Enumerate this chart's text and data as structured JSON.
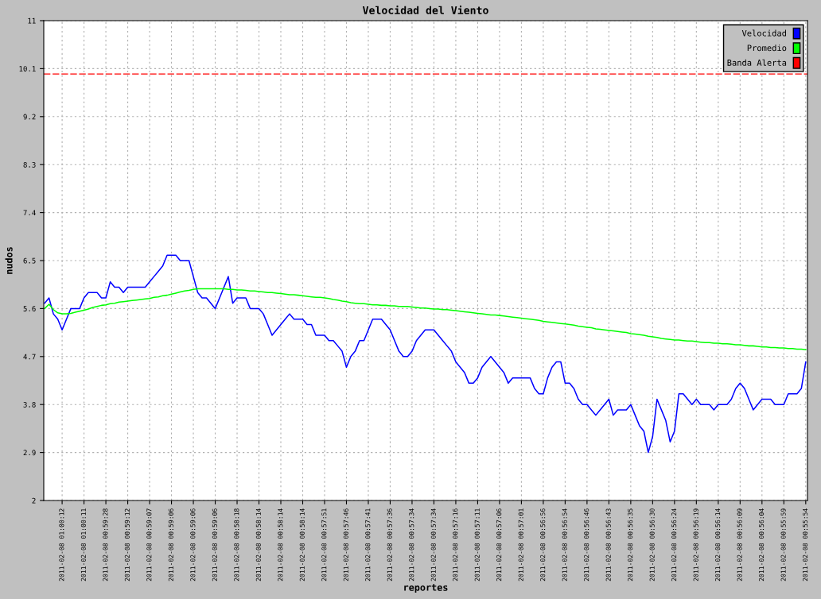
{
  "chart_data": {
    "type": "line",
    "title": "Velocidad del Viento",
    "xlabel": "reportes",
    "ylabel": "nudos",
    "ylim": [
      2,
      11
    ],
    "yticks": [
      2,
      2.9,
      3.8,
      4.7,
      5.6,
      6.5,
      7.4,
      8.3,
      9.2,
      10.1,
      11
    ],
    "categories": [
      null,
      null,
      null,
      null,
      "2011-02-08 01:00:12",
      null,
      null,
      null,
      null,
      "2011-02-08 01:00:11",
      null,
      null,
      null,
      null,
      "2011-02-08 00:59:28",
      null,
      null,
      null,
      null,
      "2011-02-08 00:59:12",
      null,
      null,
      null,
      null,
      "2011-02-08 00:59:07",
      null,
      null,
      null,
      null,
      "2011-02-08 00:59:06",
      null,
      null,
      null,
      null,
      "2011-02-08 00:59:06",
      null,
      null,
      null,
      null,
      "2011-02-08 00:59:06",
      null,
      null,
      null,
      null,
      "2011-02-08 00:58:18",
      null,
      null,
      null,
      null,
      "2011-02-08 00:58:14",
      null,
      null,
      null,
      null,
      "2011-02-08 00:58:14",
      null,
      null,
      null,
      null,
      "2011-02-08 00:58:14",
      null,
      null,
      null,
      null,
      "2011-02-08 00:57:51",
      null,
      null,
      null,
      null,
      "2011-02-08 00:57:46",
      null,
      null,
      null,
      null,
      "2011-02-08 00:57:41",
      null,
      null,
      null,
      null,
      "2011-02-08 00:57:36",
      null,
      null,
      null,
      null,
      "2011-02-08 00:57:34",
      null,
      null,
      null,
      null,
      "2011-02-08 00:57:34",
      null,
      null,
      null,
      null,
      "2011-02-08 00:57:16",
      null,
      null,
      null,
      null,
      "2011-02-08 00:57:11",
      null,
      null,
      null,
      null,
      "2011-02-08 00:57:06",
      null,
      null,
      null,
      null,
      "2011-02-08 00:57:01",
      null,
      null,
      null,
      null,
      "2011-02-08 00:56:56",
      null,
      null,
      null,
      null,
      "2011-02-08 00:56:54",
      null,
      null,
      null,
      null,
      "2011-02-08 00:56:46",
      null,
      null,
      null,
      null,
      "2011-02-08 00:56:43",
      null,
      null,
      null,
      null,
      "2011-02-08 00:56:35",
      null,
      null,
      null,
      null,
      "2011-02-08 00:56:30",
      null,
      null,
      null,
      null,
      "2011-02-08 00:56:24",
      null,
      null,
      null,
      null,
      "2011-02-08 00:56:19",
      null,
      null,
      null,
      null,
      "2011-02-08 00:56:14",
      null,
      null,
      null,
      null,
      "2011-02-08 00:56:09",
      null,
      null,
      null,
      null,
      "2011-02-08 00:56:04",
      null,
      null,
      null,
      null,
      "2011-02-08 00:55:59",
      null,
      null,
      null,
      null,
      "2011-02-08 00:55:54"
    ],
    "grid": true,
    "legend": "top right",
    "series": [
      {
        "name": "Velocidad",
        "color": "#0000ff",
        "values": [
          5.7,
          5.8,
          5.5,
          5.4,
          5.2,
          5.4,
          5.6,
          5.6,
          5.6,
          5.8,
          5.9,
          5.9,
          5.9,
          5.8,
          5.8,
          6.1,
          6.0,
          6.0,
          5.9,
          6.0,
          6.0,
          6.0,
          6.0,
          6.0,
          6.1,
          6.2,
          6.3,
          6.4,
          6.6,
          6.6,
          6.6,
          6.5,
          6.5,
          6.5,
          6.2,
          5.9,
          5.8,
          5.8,
          5.7,
          5.6,
          5.8,
          6.0,
          6.2,
          5.7,
          5.8,
          5.8,
          5.8,
          5.6,
          5.6,
          5.6,
          5.5,
          5.3,
          5.1,
          5.2,
          5.3,
          5.4,
          5.5,
          5.4,
          5.4,
          5.4,
          5.3,
          5.3,
          5.1,
          5.1,
          5.1,
          5.0,
          5.0,
          4.9,
          4.8,
          4.5,
          4.7,
          4.8,
          5.0,
          5.0,
          5.2,
          5.4,
          5.4,
          5.4,
          5.3,
          5.2,
          5.0,
          4.8,
          4.7,
          4.7,
          4.8,
          5.0,
          5.1,
          5.2,
          5.2,
          5.2,
          5.1,
          5.0,
          4.9,
          4.8,
          4.6,
          4.5,
          4.4,
          4.2,
          4.2,
          4.3,
          4.5,
          4.6,
          4.7,
          4.6,
          4.5,
          4.4,
          4.2,
          4.3,
          4.3,
          4.3,
          4.3,
          4.3,
          4.1,
          4.0,
          4.0,
          4.3,
          4.5,
          4.6,
          4.6,
          4.2,
          4.2,
          4.1,
          3.9,
          3.8,
          3.8,
          3.7,
          3.6,
          3.7,
          3.8,
          3.9,
          3.6,
          3.7,
          3.7,
          3.7,
          3.8,
          3.6,
          3.4,
          3.3,
          2.9,
          3.2,
          3.9,
          3.7,
          3.5,
          3.1,
          3.3,
          4.0,
          4.0,
          3.9,
          3.8,
          3.9,
          3.8,
          3.8,
          3.8,
          3.7,
          3.8,
          3.8,
          3.8,
          3.9,
          4.1,
          4.2,
          4.1,
          3.9,
          3.7,
          3.8,
          3.9,
          3.9,
          3.9,
          3.8,
          3.8,
          3.8,
          4.0,
          4.0,
          4.0,
          4.1,
          4.6
        ]
      },
      {
        "name": "Promedio",
        "color": "#00ff00",
        "values": [
          5.6,
          5.68,
          5.58,
          5.52,
          5.5,
          5.5,
          5.51,
          5.53,
          5.55,
          5.57,
          5.59,
          5.62,
          5.64,
          5.66,
          5.67,
          5.69,
          5.7,
          5.72,
          5.73,
          5.74,
          5.75,
          5.76,
          5.77,
          5.78,
          5.79,
          5.81,
          5.82,
          5.84,
          5.85,
          5.87,
          5.89,
          5.91,
          5.93,
          5.94,
          5.96,
          5.97,
          5.97,
          5.97,
          5.97,
          5.97,
          5.97,
          5.97,
          5.96,
          5.96,
          5.95,
          5.95,
          5.94,
          5.93,
          5.93,
          5.92,
          5.91,
          5.9,
          5.9,
          5.89,
          5.88,
          5.87,
          5.86,
          5.86,
          5.85,
          5.84,
          5.83,
          5.82,
          5.81,
          5.81,
          5.8,
          5.79,
          5.77,
          5.76,
          5.74,
          5.73,
          5.71,
          5.7,
          5.69,
          5.69,
          5.68,
          5.67,
          5.67,
          5.66,
          5.66,
          5.65,
          5.65,
          5.64,
          5.64,
          5.64,
          5.63,
          5.62,
          5.61,
          5.61,
          5.6,
          5.59,
          5.59,
          5.58,
          5.58,
          5.57,
          5.56,
          5.55,
          5.54,
          5.53,
          5.52,
          5.51,
          5.5,
          5.49,
          5.48,
          5.48,
          5.47,
          5.46,
          5.45,
          5.44,
          5.43,
          5.42,
          5.41,
          5.4,
          5.39,
          5.38,
          5.36,
          5.35,
          5.34,
          5.33,
          5.32,
          5.31,
          5.3,
          5.29,
          5.27,
          5.26,
          5.25,
          5.24,
          5.22,
          5.21,
          5.2,
          5.19,
          5.18,
          5.17,
          5.16,
          5.15,
          5.13,
          5.12,
          5.11,
          5.1,
          5.08,
          5.07,
          5.06,
          5.04,
          5.03,
          5.02,
          5.01,
          5.01,
          5.0,
          4.99,
          4.99,
          4.98,
          4.97,
          4.96,
          4.96,
          4.95,
          4.95,
          4.94,
          4.94,
          4.93,
          4.92,
          4.92,
          4.91,
          4.9,
          4.9,
          4.89,
          4.88,
          4.88,
          4.87,
          4.87,
          4.86,
          4.86,
          4.85,
          4.85,
          4.84,
          4.84,
          4.83
        ]
      }
    ],
    "ref_lines": [
      {
        "axis": "y",
        "value": 10.0,
        "label": "Banda Alerta",
        "color": "#ff0000",
        "line_style": "dashed"
      }
    ]
  }
}
